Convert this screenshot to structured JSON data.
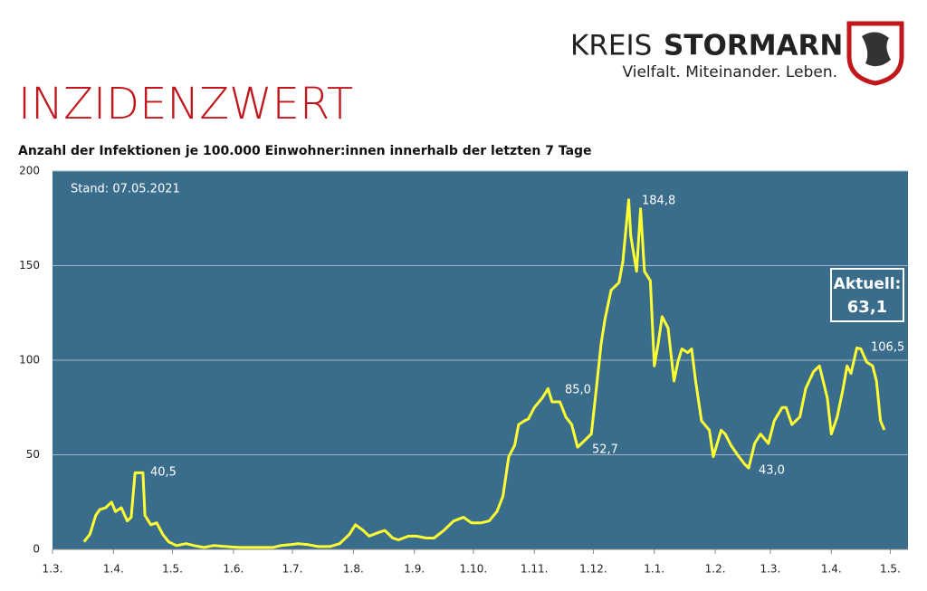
{
  "header": {
    "brand_light": "KREIS",
    "brand_bold": "STORMARN",
    "slogan": "Vielfalt. Miteinander. Leben."
  },
  "chart_data": {
    "type": "line",
    "title": "INZIDENZWERT",
    "subtitle": "Anzahl der Infektionen je 100.000 Einwohner:innen innerhalb der letzten 7 Tage",
    "annotations": [
      "Stand: 07.05.2021",
      "40,5",
      "85,0",
      "52,7",
      "184,8",
      "43,0",
      "106,5",
      "Aktuell:",
      "63,1"
    ],
    "xlim": [
      0,
      435
    ],
    "xticks": [
      {
        "value": 0,
        "label": "1.3."
      },
      {
        "value": 31,
        "label": "1.4."
      },
      {
        "value": 61,
        "label": "1.5."
      },
      {
        "value": 92,
        "label": "1.6."
      },
      {
        "value": 122,
        "label": "1.7."
      },
      {
        "value": 153,
        "label": "1.8."
      },
      {
        "value": 184,
        "label": "1.9."
      },
      {
        "value": 214,
        "label": "1.10."
      },
      {
        "value": 245,
        "label": "1.11."
      },
      {
        "value": 275,
        "label": "1.12."
      },
      {
        "value": 306,
        "label": "1.1."
      },
      {
        "value": 337,
        "label": "1.2."
      },
      {
        "value": 365,
        "label": "1.3."
      },
      {
        "value": 396,
        "label": "1.4."
      },
      {
        "value": 426,
        "label": "1.5."
      }
    ],
    "ylim": [
      0,
      200
    ],
    "yticks": [
      0,
      50,
      100,
      150,
      200
    ],
    "grid": true,
    "x": [
      16,
      19,
      22,
      24,
      27,
      30,
      32,
      35,
      38,
      40,
      42,
      46,
      47,
      50,
      53,
      56,
      59,
      63,
      68,
      72,
      77,
      82,
      88,
      95,
      102,
      112,
      116,
      121,
      125,
      130,
      135,
      141,
      146,
      151,
      154,
      158,
      161,
      166,
      169,
      173,
      176,
      181,
      185,
      190,
      194,
      199,
      204,
      209,
      213,
      218,
      222,
      226,
      229,
      232,
      235,
      237,
      240,
      242,
      245,
      249,
      252,
      254,
      258,
      261,
      264,
      267,
      270,
      274,
      276,
      279,
      281,
      284,
      288,
      290,
      293,
      294,
      297,
      299,
      301,
      304,
      306,
      308,
      310,
      313,
      316,
      318,
      320,
      323,
      325,
      327,
      330,
      334,
      336,
      340,
      342,
      345,
      349,
      352,
      354,
      357,
      360,
      364,
      367,
      371,
      373,
      376,
      380,
      383,
      387,
      390,
      394,
      396,
      399,
      402,
      404,
      406,
      409,
      411,
      414,
      417,
      419,
      421,
      423
    ],
    "series": [
      {
        "name": "Inzidenz",
        "color": "#ffff33",
        "values": [
          4,
          8,
          18,
          21,
          22,
          25,
          20,
          22,
          15,
          17,
          40.5,
          40.5,
          18,
          13,
          14,
          8,
          4,
          2,
          3,
          2,
          1,
          2,
          1.5,
          1,
          1,
          1,
          2,
          2.5,
          3,
          2.5,
          1.5,
          1.5,
          3,
          8,
          13,
          10,
          7,
          9,
          10,
          6,
          5,
          7,
          7,
          6,
          6,
          10,
          15,
          17,
          14,
          14,
          15,
          20,
          28,
          49,
          55,
          66,
          68,
          69,
          75,
          80,
          85,
          78,
          78,
          70,
          66,
          54,
          57,
          61,
          80,
          109,
          122,
          137,
          141,
          152,
          184.8,
          166,
          147,
          180,
          147,
          142,
          97,
          109,
          123,
          117,
          89,
          99,
          106,
          104,
          106,
          89,
          68,
          63,
          49,
          63,
          61,
          55,
          49,
          45,
          43,
          56,
          61,
          56,
          68,
          75,
          75,
          66,
          70,
          85,
          94,
          97,
          80,
          61,
          70,
          85,
          97,
          93,
          106.5,
          106,
          99,
          97,
          89,
          68,
          63.1
        ]
      }
    ]
  }
}
